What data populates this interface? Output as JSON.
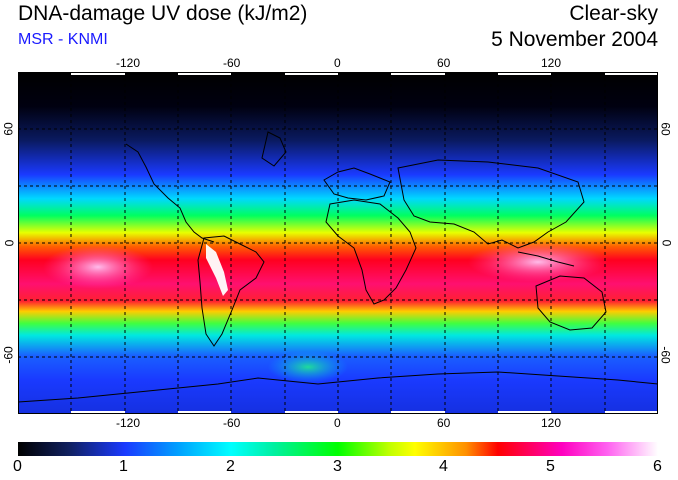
{
  "header": {
    "title": "DNA-damage UV dose (kJ/m2)",
    "subtitle": "MSR - KNMI",
    "mode": "Clear-sky",
    "date": "5 November 2004"
  },
  "colors": {
    "subtitle": "#1a1aff"
  },
  "map": {
    "lon_ticks": [
      "-120",
      "-60",
      "0",
      "60",
      "120"
    ],
    "lat_ticks_left": [
      "60",
      "0",
      "-60"
    ],
    "lat_ticks_right": [
      "60",
      "0",
      "-60"
    ]
  },
  "colorbar": {
    "labels": [
      "0",
      "1",
      "2",
      "3",
      "4",
      "5",
      "6"
    ]
  }
}
